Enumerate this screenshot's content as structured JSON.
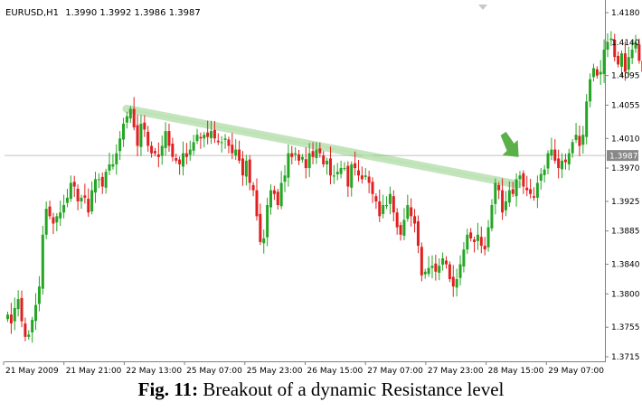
{
  "header": {
    "symbol": "EURUSD,H1",
    "ohlc": "1.3990 1.3992 1.3986 1.3987"
  },
  "caption": {
    "label": "Fig. 11:",
    "text": "Breakout of a dynamic Resistance level"
  },
  "colors": {
    "background": "#ffffff",
    "bull": "#24a524",
    "bear": "#e02020",
    "axis": "#808080",
    "text": "#000000",
    "price_line": "#c0c0c0",
    "trendline": "#7cc46e",
    "arrow": "#5cb04a",
    "price_tag_bg": "#888888",
    "price_tag_text": "#ffffff"
  },
  "chart_data": {
    "type": "candlestick",
    "symbol": "EURUSD",
    "timeframe": "H1",
    "y_ticks": [
      1.418,
      1.414,
      1.4095,
      1.4055,
      1.401,
      1.397,
      1.3925,
      1.3885,
      1.384,
      1.38,
      1.3755,
      1.3715
    ],
    "ylim": [
      1.3711,
      1.4192
    ],
    "x_ticks": [
      "21 May 2009",
      "21 May 21:00",
      "22 May 13:00",
      "25 May 07:00",
      "25 May 23:00",
      "26 May 15:00",
      "27 May 07:00",
      "27 May 23:00",
      "28 May 15:00",
      "29 May 07:00"
    ],
    "current_price": 1.3987,
    "current_price_label": "1.3987",
    "closes": [
      1.3772,
      1.376,
      1.3781,
      1.3793,
      1.3763,
      1.3742,
      1.3745,
      1.3765,
      1.3785,
      1.381,
      1.388,
      1.3915,
      1.3905,
      1.3895,
      1.3905,
      1.391,
      1.392,
      1.393,
      1.395,
      1.3945,
      1.3925,
      1.393,
      1.393,
      1.391,
      1.394,
      1.3955,
      1.3955,
      1.3945,
      1.3965,
      1.3975,
      1.3975,
      1.399,
      1.401,
      1.403,
      1.404,
      1.405,
      1.4025,
      1.4,
      1.403,
      1.4022,
      1.4,
      1.399,
      1.399,
      1.3985,
      1.4,
      1.402,
      1.4,
      1.3985,
      1.398,
      1.3975,
      1.399,
      1.3985,
      1.3995,
      1.4005,
      1.4015,
      1.401,
      1.4015,
      1.4012,
      1.402,
      1.401,
      1.4005,
      1.4005,
      1.401,
      1.4,
      1.399,
      1.3995,
      1.398,
      1.396,
      1.398,
      1.395,
      1.394,
      1.3905,
      1.387,
      1.3875,
      1.392,
      1.394,
      1.3935,
      1.392,
      1.395,
      1.396,
      1.399,
      1.3985,
      1.399,
      1.398,
      1.3985,
      1.397,
      1.399,
      1.3985,
      1.3995,
      1.399,
      1.3975,
      1.398,
      1.396,
      1.396,
      1.3965,
      1.397,
      1.397,
      1.3945,
      1.3975,
      1.397,
      1.396,
      1.3955,
      1.396,
      1.395,
      1.3935,
      1.3925,
      1.3905,
      1.392,
      1.392,
      1.3935,
      1.391,
      1.389,
      1.388,
      1.39,
      1.392,
      1.3905,
      1.3895,
      1.3865,
      1.3825,
      1.383,
      1.3835,
      1.3838,
      1.383,
      1.3838,
      1.3848,
      1.384,
      1.382,
      1.381,
      1.382,
      1.384,
      1.386,
      1.388,
      1.3875,
      1.387,
      1.388,
      1.3865,
      1.386,
      1.389,
      1.392,
      1.395,
      1.394,
      1.391,
      1.3925,
      1.394,
      1.3935,
      1.3955,
      1.396,
      1.3945,
      1.394,
      1.3935,
      1.393,
      1.395,
      1.3962,
      1.3968,
      1.399,
      1.3995,
      1.398,
      1.397,
      1.398,
      1.3978,
      1.399,
      1.4005,
      1.4015,
      1.4,
      1.4015,
      1.406,
      1.409,
      1.4105,
      1.4095,
      1.41,
      1.413,
      1.414,
      1.4145,
      1.412,
      1.411,
      1.4125,
      1.41,
      1.412,
      1.413,
      1.414,
      1.4115,
      1.41
    ]
  }
}
